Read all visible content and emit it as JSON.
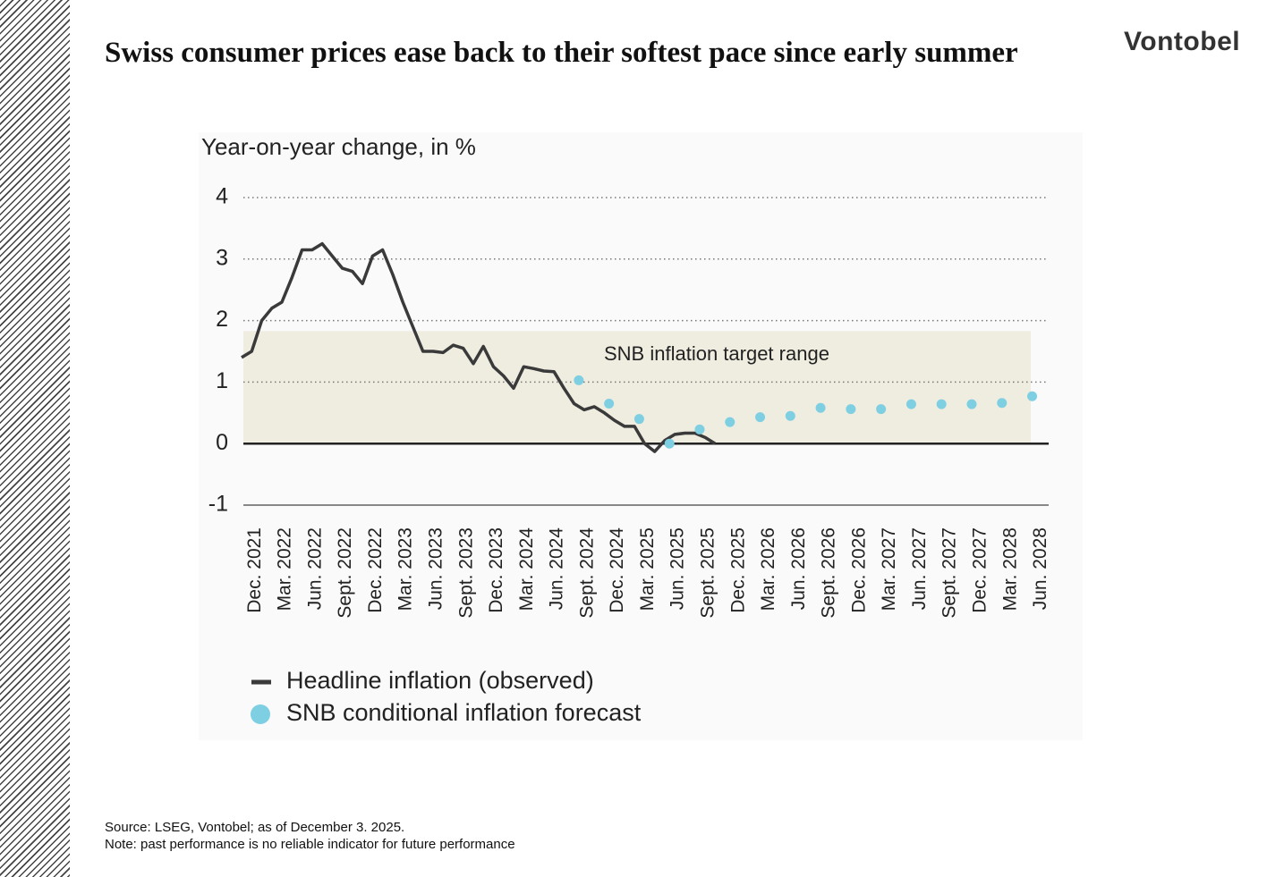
{
  "title": "Swiss consumer prices ease back to their softest pace since early summer",
  "logo": "Vontobel",
  "source": "Source: LSEG, Vontobel; as of December 3. 2025.",
  "note": "Note: past performance is no reliable indicator for future performance",
  "chart_data": {
    "type": "line",
    "y_axis_title": "Year-on-year change, in %",
    "categories": [
      null,
      "Dec. 2021",
      null,
      null,
      "Mar. 2022",
      null,
      null,
      "Jun. 2022",
      null,
      null,
      "Sept. 2022",
      null,
      null,
      "Dec. 2022",
      null,
      null,
      "Mar. 2023",
      null,
      null,
      "Jun. 2023",
      null,
      null,
      "Sept. 2023",
      null,
      null,
      "Dec. 2023",
      null,
      null,
      "Mar. 2024",
      null,
      null,
      "Jun. 2024",
      null,
      null,
      "Sept. 2024",
      null,
      null,
      "Dec. 2024",
      null,
      null,
      "Mar. 2025",
      null,
      null,
      "Jun. 2025",
      null,
      null,
      "Sept. 2025",
      null,
      null,
      "Dec. 2025",
      null,
      null,
      "Mar. 2026",
      null,
      null,
      "Jun. 2026",
      null,
      null,
      "Sept. 2026",
      null,
      null,
      "Dec. 2026",
      null,
      null,
      "Mar. 2027",
      null,
      null,
      "Jun. 2027",
      null,
      null,
      "Sept. 2027",
      null,
      null,
      "Dec. 2027",
      null,
      null,
      "Mar. 2028",
      null,
      null,
      "Jun. 2028"
    ],
    "series": [
      {
        "name": "Headline inflation (observed)",
        "color": "#3a3a3a",
        "style": "line",
        "values": [
          1.4,
          1.5,
          2.0,
          2.2,
          2.3,
          2.7,
          3.15,
          3.15,
          3.25,
          3.05,
          2.85,
          2.8,
          2.6,
          3.05,
          3.15,
          2.75,
          2.3,
          1.9,
          1.5,
          1.5,
          1.48,
          1.6,
          1.55,
          1.3,
          1.58,
          1.25,
          1.1,
          0.9,
          1.25,
          1.22,
          1.18,
          1.17,
          0.9,
          0.65,
          0.55,
          0.6,
          0.5,
          0.38,
          0.28,
          0.28,
          0.0,
          -0.13,
          0.05,
          0.15,
          0.17,
          0.17,
          0.1,
          0.0,
          null,
          null,
          null,
          null,
          null,
          null,
          null,
          null,
          null,
          null,
          null,
          null,
          null,
          null,
          null,
          null,
          null,
          null,
          null,
          null,
          null,
          null,
          null,
          null,
          null,
          null,
          null,
          null,
          null,
          null,
          null,
          null
        ]
      },
      {
        "name": "SNB conditional inflation forecast",
        "color": "#7fcfe3",
        "style": "dots",
        "values": [
          null,
          null,
          null,
          null,
          null,
          null,
          null,
          null,
          null,
          null,
          null,
          null,
          null,
          null,
          null,
          null,
          null,
          null,
          null,
          null,
          null,
          null,
          null,
          null,
          null,
          null,
          null,
          null,
          null,
          null,
          null,
          null,
          null,
          null,
          1.03,
          null,
          null,
          0.65,
          null,
          null,
          0.4,
          null,
          null,
          0.0,
          null,
          null,
          0.23,
          null,
          null,
          0.35,
          null,
          null,
          0.43,
          null,
          null,
          0.45,
          null,
          null,
          0.58,
          null,
          null,
          0.56,
          null,
          null,
          0.56,
          null,
          null,
          0.64,
          null,
          null,
          0.64,
          null,
          null,
          0.64,
          null,
          null,
          0.66,
          null,
          null,
          0.77
        ]
      }
    ],
    "target_band": {
      "label": "SNB inflation target range",
      "from": 0,
      "to": 1.83,
      "color": "#efece0"
    },
    "ylim": [
      -1,
      4
    ],
    "yticks": [
      -1,
      0,
      1,
      2,
      3,
      4
    ],
    "grid": true
  }
}
